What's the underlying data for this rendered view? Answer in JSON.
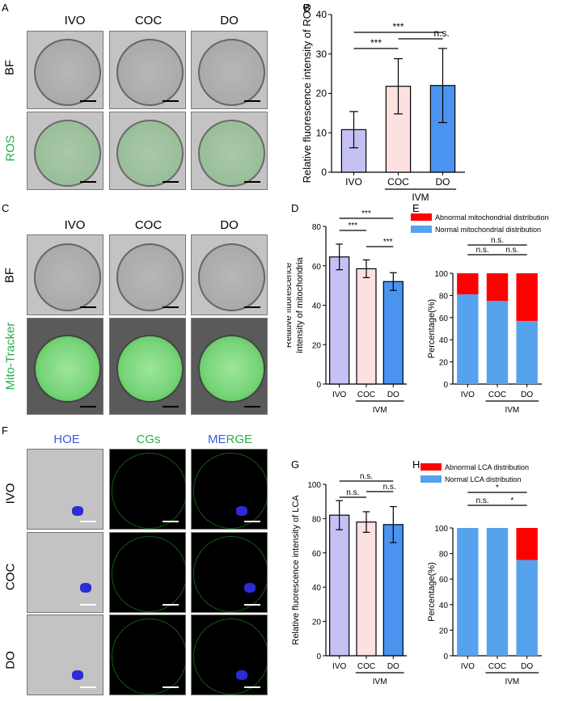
{
  "panels": {
    "A": {
      "letter": "A",
      "columns": [
        "IVO",
        "COC",
        "DO"
      ],
      "rows": [
        "BF",
        "ROS"
      ]
    },
    "B": {
      "letter": "B"
    },
    "C": {
      "letter": "C",
      "columns": [
        "IVO",
        "COC",
        "DO"
      ],
      "rows": [
        "BF",
        "Mito-Tracker"
      ]
    },
    "D": {
      "letter": "D"
    },
    "E": {
      "letter": "E"
    },
    "F": {
      "letter": "F",
      "columns": [
        "HOE",
        "CGs",
        "MERGE"
      ],
      "merge_part1": "ME",
      "merge_part2": "RGE",
      "rows": [
        "IVO",
        "COC",
        "DO"
      ]
    },
    "G": {
      "letter": "G"
    },
    "H": {
      "letter": "H"
    }
  },
  "colors": {
    "ivo": "#c5c1f5",
    "coc": "#fde0e0",
    "do": "#4a94f0",
    "abnormal": "#ff0000",
    "normal": "#56a2ec",
    "green_text": "#22b04a",
    "blue_text": "#3b5bde"
  },
  "chart_data": [
    {
      "panel": "B",
      "type": "bar",
      "categories": [
        "IVO",
        "COC",
        "DO"
      ],
      "values": [
        10.8,
        21.8,
        22.0
      ],
      "errors": [
        4.6,
        7.0,
        9.4
      ],
      "ylabel": "Relative fluorescence intensity of ROS",
      "ylim": [
        0,
        40
      ],
      "yticks": [
        "0",
        "10",
        "20",
        "30",
        "40"
      ],
      "group_label": "IVM",
      "significance": [
        "***",
        "***",
        "n.s."
      ]
    },
    {
      "panel": "D",
      "type": "bar",
      "categories": [
        "IVO",
        "COC",
        "DO"
      ],
      "values": [
        64.5,
        58.5,
        52.0
      ],
      "errors": [
        6.5,
        4.5,
        4.5
      ],
      "ylabel": "Relative fluorescence intensity of mitochondria",
      "ylim": [
        0,
        80
      ],
      "yticks": [
        "0",
        "20",
        "40",
        "60",
        "80"
      ],
      "group_label": "IVM",
      "significance": [
        "***",
        "***",
        "***"
      ]
    },
    {
      "panel": "E",
      "type": "bar",
      "categories": [
        "IVO",
        "COC",
        "DO"
      ],
      "series": [
        {
          "name": "Normal mitochondrial distribution",
          "values": [
            81,
            75,
            57
          ]
        },
        {
          "name": "Abnormal mitochondrial distribution",
          "values": [
            19,
            25,
            43
          ]
        }
      ],
      "ylabel": "Percentage(%)",
      "ylim": [
        0,
        100
      ],
      "yticks": [
        "0",
        "20",
        "40",
        "60",
        "80",
        "100"
      ],
      "group_label": "IVM",
      "significance": [
        "n.s.",
        "n.s.",
        "n.s."
      ]
    },
    {
      "panel": "G",
      "type": "bar",
      "categories": [
        "IVO",
        "COC",
        "DO"
      ],
      "values": [
        82.0,
        78.0,
        76.5
      ],
      "errors": [
        8.5,
        6.0,
        10.5
      ],
      "ylabel": "Relative fluorescence intensity of LCA",
      "ylim": [
        0,
        100
      ],
      "yticks": [
        "0",
        "20",
        "40",
        "60",
        "80",
        "100"
      ],
      "group_label": "IVM",
      "significance": [
        "n.s.",
        "n.s.",
        "n.s."
      ]
    },
    {
      "panel": "H",
      "type": "bar",
      "categories": [
        "IVO",
        "COC",
        "DO"
      ],
      "series": [
        {
          "name": "Normal LCA distribution",
          "values": [
            100,
            100,
            75
          ]
        },
        {
          "name": "Abnormal LCA distribution",
          "values": [
            0,
            0,
            25
          ]
        }
      ],
      "ylabel": "Percentage(%)",
      "ylim": [
        0,
        100
      ],
      "yticks": [
        "0",
        "20",
        "40",
        "60",
        "80",
        "100"
      ],
      "group_label": "IVM",
      "significance": [
        "*",
        "n.s.",
        "*"
      ]
    }
  ]
}
